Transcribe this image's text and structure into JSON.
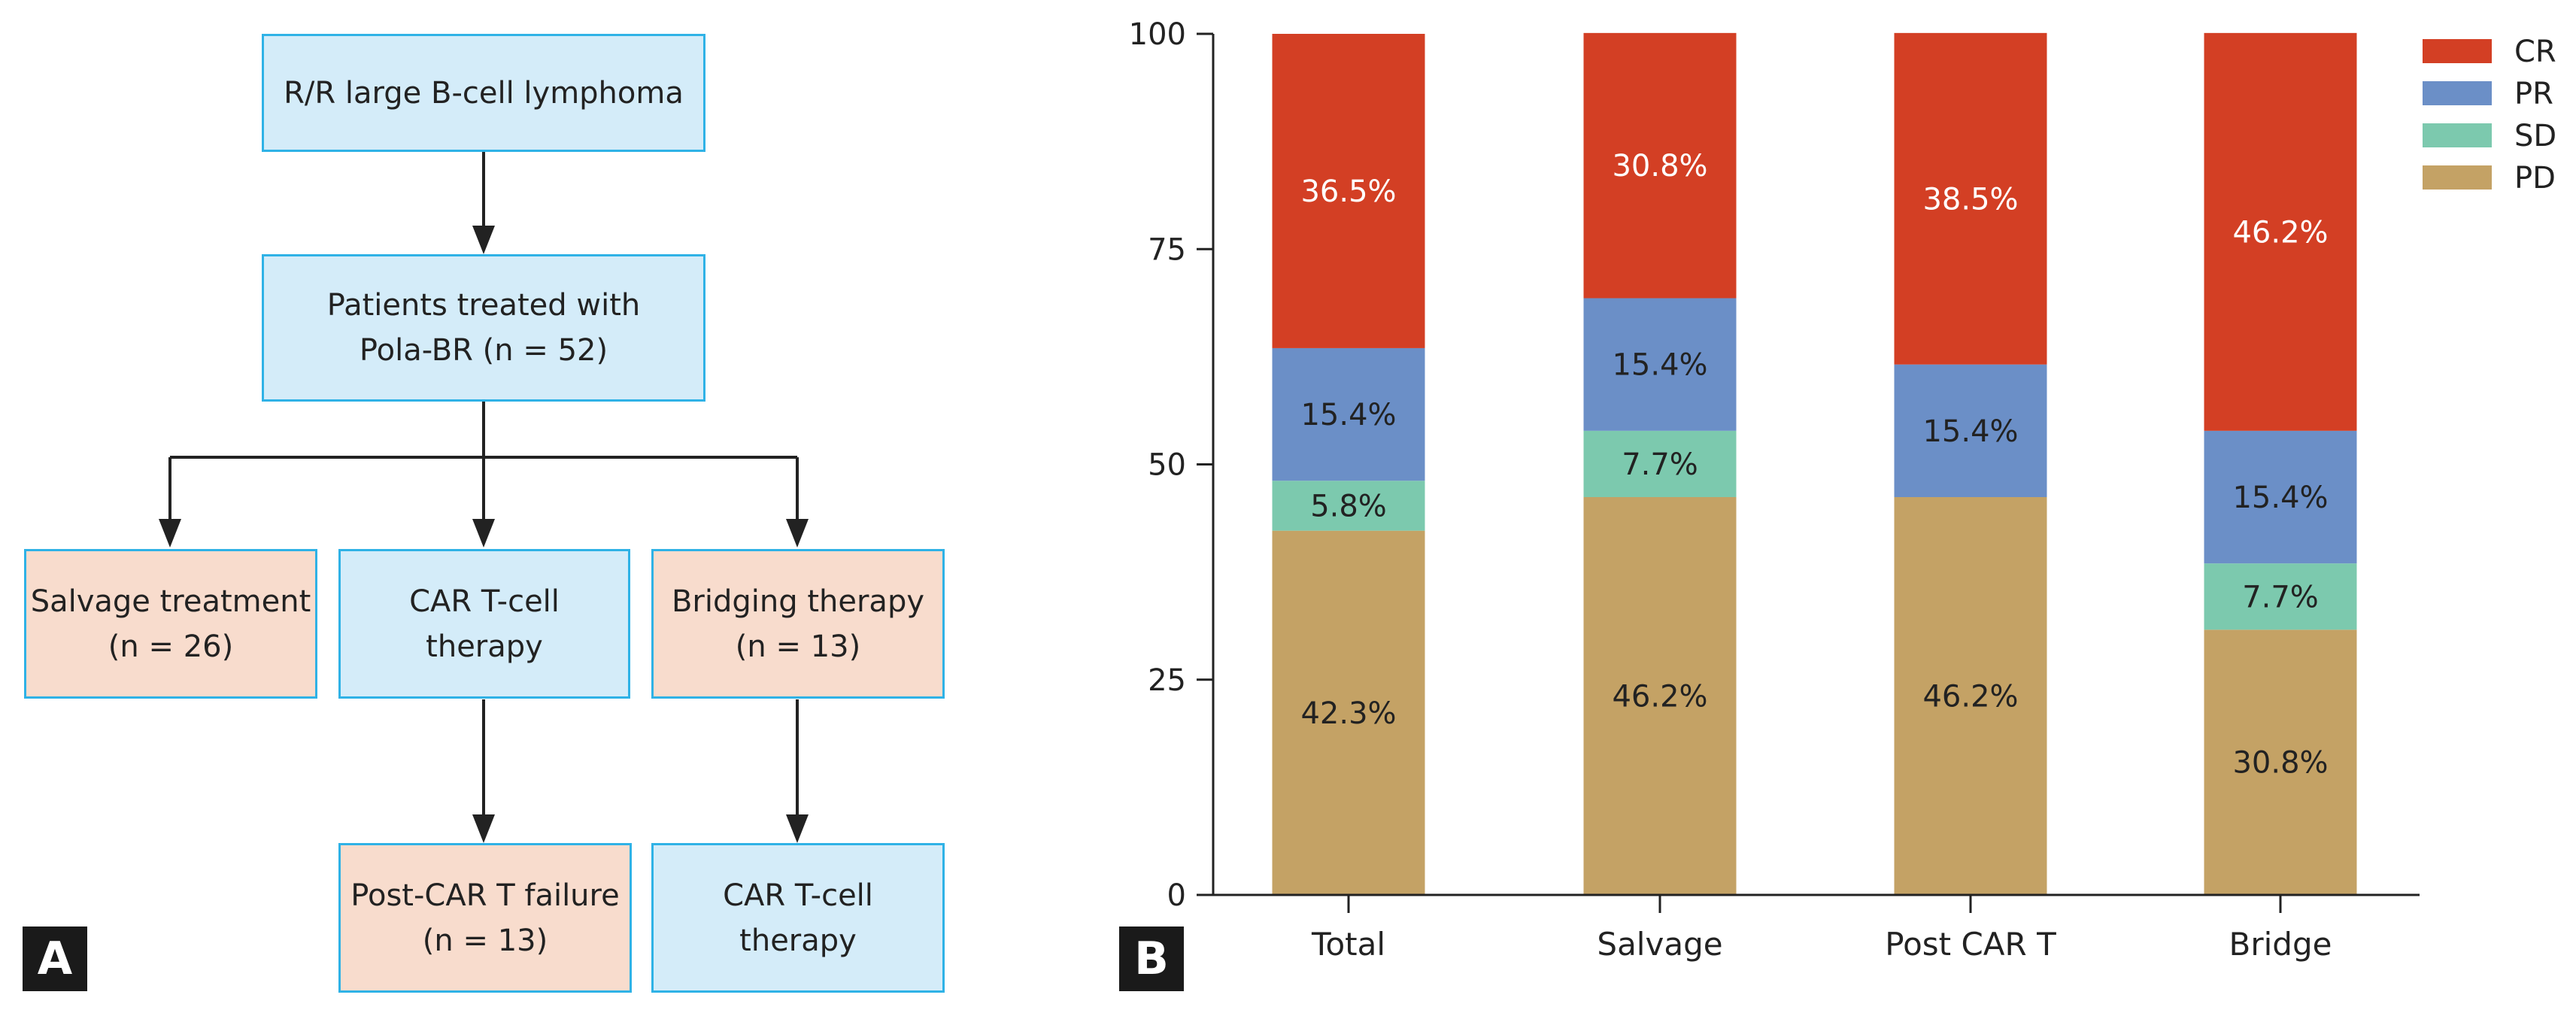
{
  "panel_a": {
    "tag": "A",
    "boxes": {
      "root": {
        "lines": [
          "R/R large B-cell lymphoma"
        ]
      },
      "treated": {
        "lines": [
          "Patients treated with",
          "Pola-BR (n = 52)"
        ]
      },
      "salvage": {
        "lines": [
          "Salvage treatment",
          "(n = 26)"
        ]
      },
      "cart": {
        "lines": [
          "CAR T-cell",
          "therapy"
        ]
      },
      "bridging": {
        "lines": [
          "Bridging therapy",
          "(n = 13)"
        ]
      },
      "post_cart": {
        "lines": [
          "Post-CAR T failure",
          "(n = 13)"
        ]
      },
      "cart2": {
        "lines": [
          "CAR T-cell",
          "therapy"
        ]
      }
    },
    "colors": {
      "blue_fill": "#d4ecf9",
      "peach_fill": "#f8dccd",
      "border": "#2fb2e6",
      "arrow": "#222222"
    }
  },
  "panel_b": {
    "tag": "B",
    "chart_data": {
      "type": "bar",
      "stacked": true,
      "categories": [
        "Total",
        "Salvage",
        "Post CAR T",
        "Bridge"
      ],
      "series": [
        {
          "name": "PD",
          "color": "#c4a265",
          "values": [
            42.3,
            46.2,
            46.2,
            30.8
          ],
          "labels": [
            "42.3%",
            "46.2%",
            "46.2%",
            "30.8%"
          ]
        },
        {
          "name": "SD",
          "color": "#7cc9ae",
          "values": [
            5.8,
            7.7,
            0,
            7.7
          ],
          "labels": [
            "5.8%",
            "7.7%",
            "",
            "7.7%"
          ]
        },
        {
          "name": "PR",
          "color": "#6b8fc7",
          "values": [
            15.4,
            15.4,
            15.4,
            15.4
          ],
          "labels": [
            "15.4%",
            "15.4%",
            "15.4%",
            "15.4%"
          ]
        },
        {
          "name": "CR",
          "color": "#d33f24",
          "values": [
            36.5,
            30.8,
            38.5,
            46.2
          ],
          "labels": [
            "36.5%",
            "30.8%",
            "38.5%",
            "46.2%"
          ]
        }
      ],
      "legend_order": [
        "CR",
        "PR",
        "SD",
        "PD"
      ],
      "legend_position": "top-right",
      "ylim": [
        0,
        100
      ],
      "yticks": [
        0,
        25,
        50,
        75,
        100
      ],
      "grid": false,
      "title": "",
      "xlabel": "",
      "ylabel": ""
    }
  }
}
